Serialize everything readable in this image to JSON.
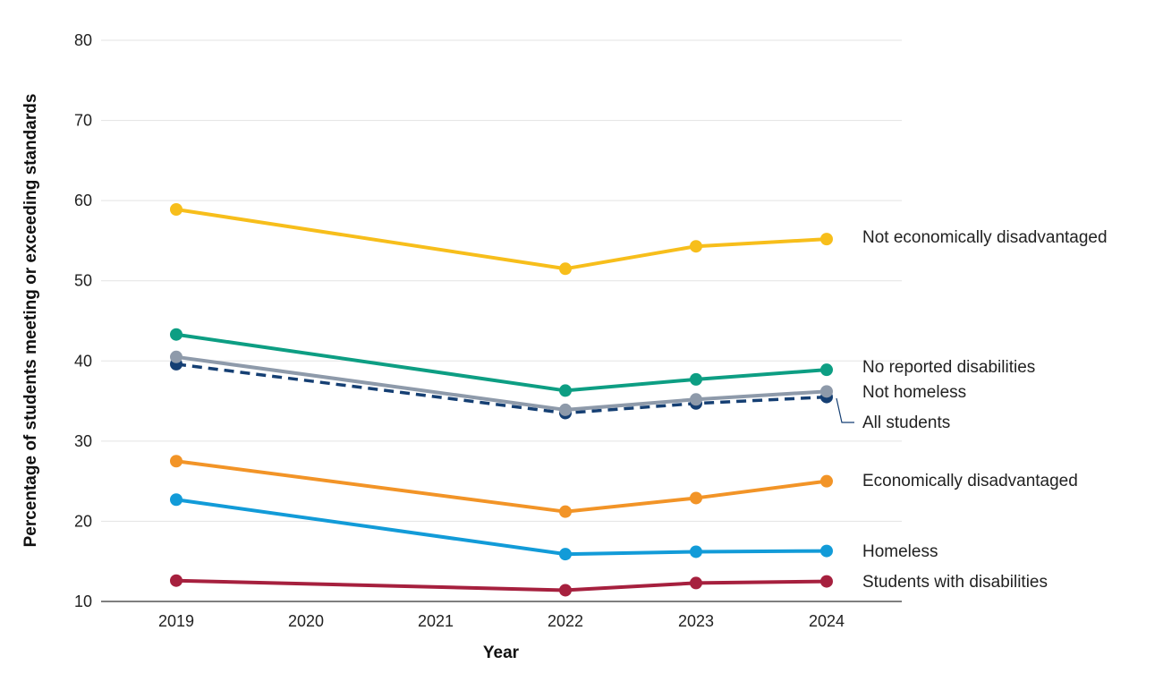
{
  "chart_data": {
    "type": "line",
    "title": "",
    "xlabel": "Year",
    "ylabel": "Percentage of students meeting or exceeding standards",
    "ylim": [
      10,
      80
    ],
    "yticks": [
      10,
      20,
      30,
      40,
      50,
      60,
      70,
      80
    ],
    "categories": [
      "2019",
      "2020",
      "2021",
      "2022",
      "2023",
      "2024"
    ],
    "grid": true,
    "legend": "direct labels at right end of each line",
    "series": [
      {
        "name": "Not economically disadvantaged",
        "color": "#F7BE1B",
        "dashed": false,
        "x": [
          "2019",
          "2022",
          "2023",
          "2024"
        ],
        "values": [
          58.9,
          51.5,
          54.3,
          55.2
        ]
      },
      {
        "name": "No reported disabilities",
        "color": "#0D9E83",
        "dashed": false,
        "x": [
          "2019",
          "2022",
          "2023",
          "2024"
        ],
        "values": [
          43.3,
          36.3,
          37.7,
          38.9
        ]
      },
      {
        "name": "Not homeless",
        "color": "#8E9AAA",
        "dashed": false,
        "x": [
          "2019",
          "2022",
          "2023",
          "2024"
        ],
        "values": [
          40.5,
          33.9,
          35.2,
          36.2
        ]
      },
      {
        "name": "All students",
        "color": "#153F73",
        "dashed": true,
        "x": [
          "2019",
          "2022",
          "2023",
          "2024"
        ],
        "values": [
          39.6,
          33.5,
          34.7,
          35.5
        ]
      },
      {
        "name": "Economically disadvantaged",
        "color": "#F29427",
        "dashed": false,
        "x": [
          "2019",
          "2022",
          "2023",
          "2024"
        ],
        "values": [
          27.5,
          21.2,
          22.9,
          25.0
        ]
      },
      {
        "name": "Homeless",
        "color": "#129BD8",
        "dashed": false,
        "x": [
          "2019",
          "2022",
          "2023",
          "2024"
        ],
        "values": [
          22.7,
          15.9,
          16.2,
          16.3
        ]
      },
      {
        "name": "Students with disabilities",
        "color": "#A6203E",
        "dashed": false,
        "x": [
          "2019",
          "2022",
          "2023",
          "2024"
        ],
        "values": [
          12.6,
          11.4,
          12.3,
          12.5
        ]
      }
    ]
  }
}
